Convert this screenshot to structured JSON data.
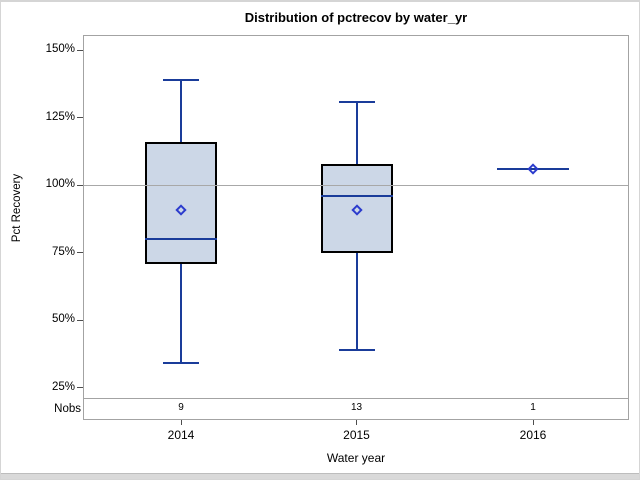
{
  "chart_data": {
    "type": "box",
    "title": "Distribution of pctrecov by water_yr",
    "xlabel": "Water year",
    "ylabel": "Pct Recovery",
    "nobs_label": "Nobs",
    "refline_value": 100,
    "y_axis": {
      "tick_values": [
        150,
        125,
        100,
        75,
        50,
        25
      ],
      "tick_labels": [
        "150%",
        "125%",
        "100%",
        "75%",
        "50%",
        "25%"
      ],
      "ylim": [
        21,
        156
      ],
      "grid": false
    },
    "categories": [
      "2014",
      "2015",
      "2016"
    ],
    "nobs": [
      9,
      13,
      1
    ],
    "series": [
      {
        "category": "2014",
        "n": 9,
        "whisker_low": 34,
        "q1": 71,
        "median": 80,
        "mean": 91,
        "q3": 116,
        "whisker_high": 139
      },
      {
        "category": "2015",
        "n": 13,
        "whisker_low": 39,
        "q1": 75,
        "median": 96,
        "mean": 91,
        "q3": 108,
        "whisker_high": 131
      },
      {
        "category": "2016",
        "n": 1,
        "whisker_low": 106,
        "q1": 106,
        "median": 106,
        "mean": 106,
        "q3": 106,
        "whisker_high": 106
      }
    ],
    "colors": {
      "box_fill": "#ccd7e7",
      "box_border": "#000000",
      "line": "#1a3c9a",
      "mean_marker": "#2b3bcd",
      "refline": "#a8a8a8",
      "frame": "#a3a3a3",
      "text": "#000000",
      "outer_border": "#d5d5d5"
    }
  }
}
